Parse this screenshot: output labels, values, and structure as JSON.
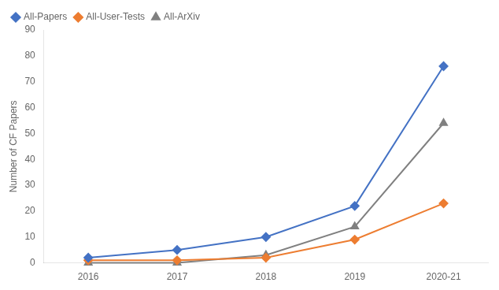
{
  "chart_data": {
    "type": "line",
    "categories": [
      "2016",
      "2017",
      "2018",
      "2019",
      "2020-21"
    ],
    "series": [
      {
        "name": "All-Papers",
        "color": "#4472C4",
        "marker": "diamond",
        "values": [
          2,
          5,
          10,
          22,
          76
        ]
      },
      {
        "name": "All-User-Tests",
        "color": "#ED7D31",
        "marker": "diamond",
        "values": [
          1,
          1,
          2,
          9,
          23
        ]
      },
      {
        "name": "All-ArXiv",
        "color": "#808080",
        "marker": "triangle",
        "values": [
          0,
          0,
          3,
          14,
          54
        ]
      }
    ],
    "y_label": "Number of CF Papers",
    "ylim": [
      0,
      90
    ],
    "yticks": [
      0,
      10,
      20,
      30,
      40,
      50,
      60,
      70,
      80,
      90
    ],
    "grid": false,
    "legend": "upper left"
  }
}
